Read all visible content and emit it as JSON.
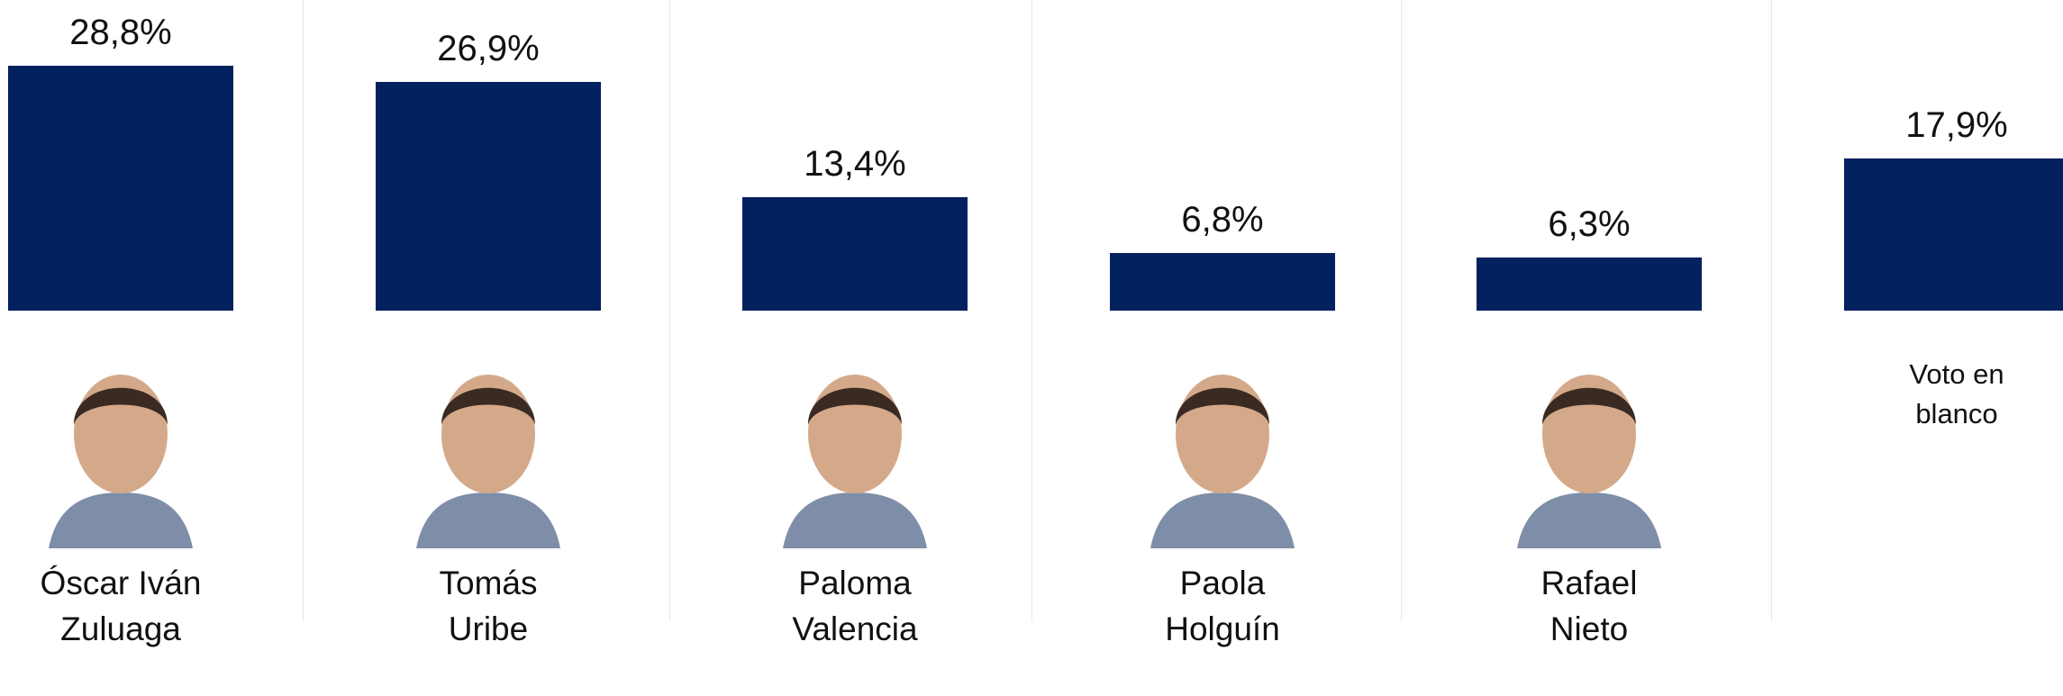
{
  "chart_data": {
    "type": "bar",
    "categories": [
      "Óscar Iván Zuluaga",
      "Tomás Uribe",
      "Paloma Valencia",
      "Paola Holguín",
      "Rafael Nieto",
      "Voto en blanco"
    ],
    "values": [
      28.8,
      26.9,
      13.4,
      6.8,
      6.3,
      17.9
    ],
    "value_labels": [
      "28,8%",
      "26,9%",
      "13,4%",
      "6,8%",
      "6,3%",
      "17,9%"
    ],
    "color": "#03205f"
  }
}
